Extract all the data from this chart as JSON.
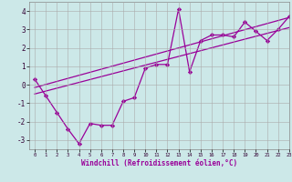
{
  "title": "",
  "xlabel": "Windchill (Refroidissement éolien,°C)",
  "ylabel": "",
  "xlim": [
    -0.5,
    23
  ],
  "ylim": [
    -3.5,
    4.5
  ],
  "xticks": [
    0,
    1,
    2,
    3,
    4,
    5,
    6,
    7,
    8,
    9,
    10,
    11,
    12,
    13,
    14,
    15,
    16,
    17,
    18,
    19,
    20,
    21,
    22,
    23
  ],
  "yticks": [
    -3,
    -2,
    -1,
    0,
    1,
    2,
    3,
    4
  ],
  "bg_color": "#cce8e8",
  "line_color": "#990099",
  "grid_color": "#aaaaaa",
  "series": [
    {
      "x": [
        0,
        1,
        2,
        3,
        4,
        5,
        6,
        7,
        8,
        9,
        10,
        11,
        12,
        13,
        14,
        15,
        16,
        17,
        18,
        19,
        20,
        21,
        22,
        23
      ],
      "y": [
        0.3,
        -0.6,
        -1.5,
        -2.4,
        -3.2,
        -2.1,
        -2.2,
        -2.2,
        -0.9,
        -0.7,
        0.9,
        1.1,
        1.1,
        4.1,
        0.7,
        2.4,
        2.7,
        2.7,
        2.6,
        3.4,
        2.9,
        2.4,
        3.0,
        3.7
      ],
      "marker": "D",
      "linestyle": "-",
      "markersize": 2.2,
      "linewidth": 0.9
    },
    {
      "x": [
        0,
        23
      ],
      "y": [
        -0.5,
        3.1
      ],
      "marker": null,
      "linestyle": "-",
      "linewidth": 0.9
    },
    {
      "x": [
        0,
        23
      ],
      "y": [
        -0.15,
        3.65
      ],
      "marker": null,
      "linestyle": "-",
      "linewidth": 0.9
    }
  ]
}
